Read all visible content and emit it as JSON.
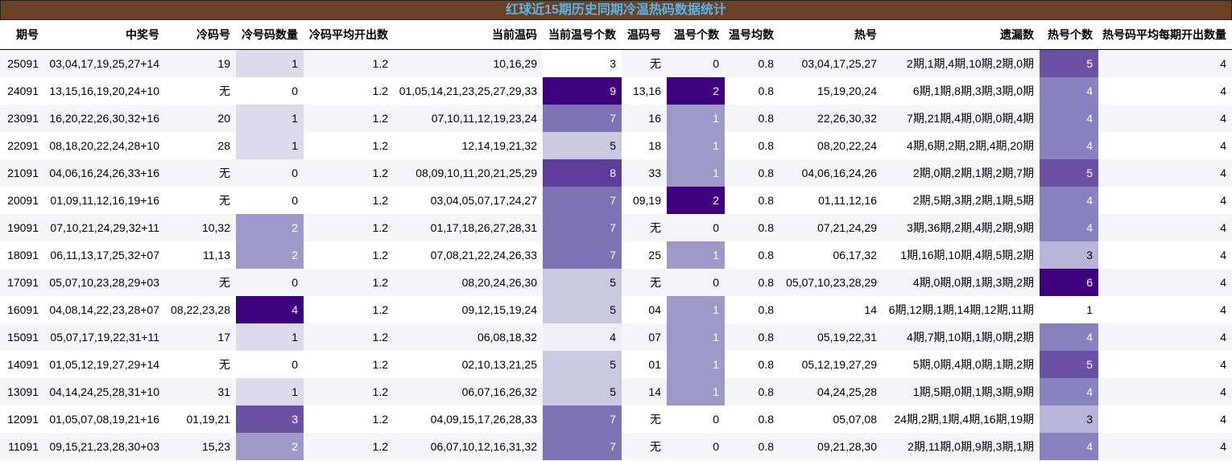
{
  "title": "红球近15期历史同期冷温热码数据统计",
  "headers": [
    "期号",
    "中奖号",
    "冷码号",
    "冷号码数量",
    "冷码平均开出数",
    "当前温码",
    "当前温号个数",
    "温码号",
    "温号个数",
    "温号均数",
    "热号",
    "遗漏数",
    "热号个数",
    "热号码平均每期开出数量"
  ],
  "rows": [
    [
      "25091",
      "03,04,17,19,25,27+14",
      "19",
      "1",
      "1.2",
      "10,16,29",
      "3",
      "无",
      "0",
      "0.8",
      "03,04,17,25,27",
      "2期,1期,4期,10期,2期,0期",
      "5",
      "4"
    ],
    [
      "24091",
      "13,15,16,19,20,24+10",
      "无",
      "0",
      "1.2",
      "01,05,14,21,23,25,27,29,33",
      "9",
      "13,16",
      "2",
      "0.8",
      "15,19,20,24",
      "6期,1期,8期,3期,3期,0期",
      "4",
      "4"
    ],
    [
      "23091",
      "16,20,22,26,30,32+16",
      "20",
      "1",
      "1.2",
      "07,10,11,12,19,23,24",
      "7",
      "16",
      "1",
      "0.8",
      "22,26,30,32",
      "7期,21期,4期,0期,0期,4期",
      "4",
      "4"
    ],
    [
      "22091",
      "08,18,20,22,24,28+10",
      "28",
      "1",
      "1.2",
      "12,14,19,21,32",
      "5",
      "18",
      "1",
      "0.8",
      "08,20,22,24",
      "4期,6期,2期,2期,4期,20期",
      "4",
      "4"
    ],
    [
      "21091",
      "04,06,16,24,26,33+16",
      "无",
      "0",
      "1.2",
      "08,09,10,11,20,21,25,29",
      "8",
      "33",
      "1",
      "0.8",
      "04,06,16,24,26",
      "2期,0期,2期,1期,2期,7期",
      "5",
      "4"
    ],
    [
      "20091",
      "01,09,11,12,16,19+16",
      "无",
      "0",
      "1.2",
      "03,04,05,07,17,24,27",
      "7",
      "09,19",
      "2",
      "0.8",
      "01,11,12,16",
      "2期,5期,3期,2期,1期,5期",
      "4",
      "4"
    ],
    [
      "19091",
      "07,10,21,24,29,32+11",
      "10,32",
      "2",
      "1.2",
      "01,17,18,26,27,28,31",
      "7",
      "无",
      "0",
      "0.8",
      "07,21,24,29",
      "3期,36期,2期,4期,2期,9期",
      "4",
      "4"
    ],
    [
      "18091",
      "06,11,13,17,25,32+07",
      "11,13",
      "2",
      "1.2",
      "07,08,21,22,24,26,33",
      "7",
      "25",
      "1",
      "0.8",
      "06,17,32",
      "1期,16期,10期,4期,5期,2期",
      "3",
      "4"
    ],
    [
      "17091",
      "05,07,10,23,28,29+03",
      "无",
      "0",
      "1.2",
      "08,20,24,26,30",
      "5",
      "无",
      "0",
      "0.8",
      "05,07,10,23,28,29",
      "4期,0期,0期,1期,3期,2期",
      "6",
      "4"
    ],
    [
      "16091",
      "04,08,14,22,23,28+07",
      "08,22,23,28",
      "4",
      "1.2",
      "09,12,15,19,24",
      "5",
      "04",
      "1",
      "0.8",
      "14",
      "6期,12期,1期,14期,12期,11期",
      "1",
      "4"
    ],
    [
      "15091",
      "05,07,17,19,22,31+11",
      "17",
      "1",
      "1.2",
      "06,08,18,32",
      "4",
      "07",
      "1",
      "0.8",
      "05,19,22,31",
      "4期,7期,10期,1期,0期,2期",
      "4",
      "4"
    ],
    [
      "14091",
      "01,05,12,19,27,29+14",
      "无",
      "0",
      "1.2",
      "02,10,13,21,25",
      "5",
      "01",
      "1",
      "0.8",
      "05,12,19,27,29",
      "5期,0期,4期,0期,1期,2期",
      "5",
      "4"
    ],
    [
      "13091",
      "04,14,24,25,28,31+10",
      "31",
      "1",
      "1.2",
      "06,07,16,26,32",
      "5",
      "14",
      "1",
      "0.8",
      "04,24,25,28",
      "1期,5期,0期,1期,3期,9期",
      "4",
      "4"
    ],
    [
      "12091",
      "01,05,07,08,19,21+16",
      "01,19,21",
      "3",
      "1.2",
      "04,09,15,17,26,28,33",
      "7",
      "无",
      "0",
      "0.8",
      "05,07,08",
      "24期,2期,1期,4期,16期,19期",
      "3",
      "4"
    ],
    [
      "11091",
      "09,15,21,23,28,30+03",
      "15,23",
      "2",
      "1.2",
      "06,07,10,12,16,31,32",
      "7",
      "无",
      "0",
      "0.8",
      "09,21,28,30",
      "2期,11期,0期,9期,3期,1期",
      "4",
      "4"
    ]
  ],
  "heatmap_colors": {
    "cold_count": {
      "1": "#dcdaec",
      "2": "#9e9ac8",
      "3": "#6a51a3",
      "4": "#3f007d"
    },
    "warm_current_count": {
      "3": "#ffffff",
      "4": "#efedf5",
      "5": "#cbc9e2",
      "7": "#7c72b4",
      "8": "#5e3c99",
      "9": "#3f007d"
    },
    "warm_count": {
      "1": "#9e9ac8",
      "2": "#3f007d"
    },
    "hot_count": {
      "1": "#ffffff",
      "3": "#b8b5d9",
      "4": "#8882be",
      "5": "#6a51a3",
      "6": "#3f007d"
    }
  }
}
